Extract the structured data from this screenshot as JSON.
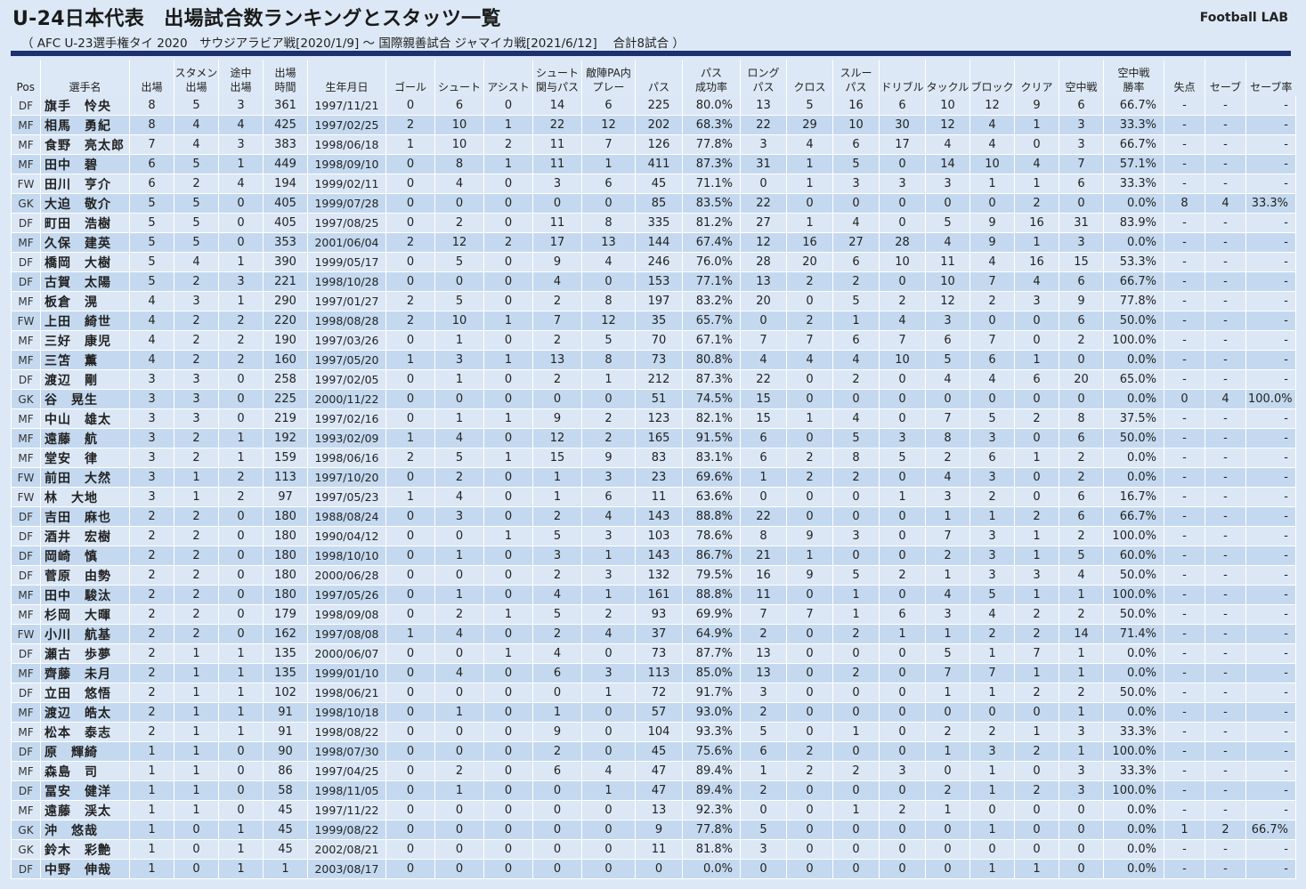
{
  "header": {
    "title": "U-24日本代表　出場試合数ランキングとスタッツ一覧",
    "subtitle": "（ AFC U-23選手権タイ 2020　サウジアラビア戦[2020/1/9] ～ 国際親善試合 ジャマイカ戦[2021/6/12]　 合計8試合 ）",
    "brand": "Football LAB"
  },
  "colors": {
    "accent": "#1e2f72",
    "row_light": "#dbe7f5",
    "row_dark": "#c4d9ef",
    "bar_fill": "#2c64a8"
  },
  "columns": [
    [
      "Pos"
    ],
    [
      "選手名"
    ],
    [
      "出場"
    ],
    [
      "スタメン",
      "出場"
    ],
    [
      "途中",
      "出場"
    ],
    [
      "出場",
      "時間"
    ],
    [
      "生年月日"
    ],
    [
      "ゴール"
    ],
    [
      "シュート"
    ],
    [
      "アシスト"
    ],
    [
      "シュート",
      "関与パス"
    ],
    [
      "敵陣PA内",
      "プレー"
    ],
    [
      "パス"
    ],
    [
      "パス",
      "成功率"
    ],
    [
      "ロング",
      "パス"
    ],
    [
      "クロス"
    ],
    [
      "スルー",
      "パス"
    ],
    [
      "ドリブル"
    ],
    [
      "タックル"
    ],
    [
      "ブロック"
    ],
    [
      "クリア"
    ],
    [
      "空中戦"
    ],
    [
      "空中戦",
      "勝率"
    ],
    [
      "失点"
    ],
    [
      "セーブ"
    ],
    [
      "セーブ率"
    ]
  ],
  "maxima": [
    8,
    5,
    4,
    449,
    null,
    2,
    12,
    2,
    22,
    13,
    411,
    null,
    31,
    29,
    27,
    30,
    14,
    12,
    16,
    31,
    null,
    8,
    4,
    null
  ],
  "players": [
    [
      "DF",
      "旗手　怜央",
      "8",
      "5",
      "3",
      "361",
      "1997/11/21",
      "0",
      "6",
      "0",
      "14",
      "6",
      "225",
      "80.0%",
      "13",
      "5",
      "16",
      "6",
      "10",
      "12",
      "9",
      "6",
      "66.7%",
      "-",
      "-",
      "-"
    ],
    [
      "MF",
      "相馬　勇紀",
      "8",
      "4",
      "4",
      "425",
      "1997/02/25",
      "2",
      "10",
      "1",
      "22",
      "12",
      "202",
      "68.3%",
      "22",
      "29",
      "10",
      "30",
      "12",
      "4",
      "1",
      "3",
      "33.3%",
      "-",
      "-",
      "-"
    ],
    [
      "MF",
      "食野　亮太郎",
      "7",
      "4",
      "3",
      "383",
      "1998/06/18",
      "1",
      "10",
      "2",
      "11",
      "7",
      "126",
      "77.8%",
      "3",
      "4",
      "6",
      "17",
      "4",
      "4",
      "0",
      "3",
      "66.7%",
      "-",
      "-",
      "-"
    ],
    [
      "MF",
      "田中　碧",
      "6",
      "5",
      "1",
      "449",
      "1998/09/10",
      "0",
      "8",
      "1",
      "11",
      "1",
      "411",
      "87.3%",
      "31",
      "1",
      "5",
      "0",
      "14",
      "10",
      "4",
      "7",
      "57.1%",
      "-",
      "-",
      "-"
    ],
    [
      "FW",
      "田川　亨介",
      "6",
      "2",
      "4",
      "194",
      "1999/02/11",
      "0",
      "4",
      "0",
      "3",
      "6",
      "45",
      "71.1%",
      "0",
      "1",
      "3",
      "3",
      "3",
      "1",
      "1",
      "6",
      "33.3%",
      "-",
      "-",
      "-"
    ],
    [
      "GK",
      "大迫　敬介",
      "5",
      "5",
      "0",
      "405",
      "1999/07/28",
      "0",
      "0",
      "0",
      "0",
      "0",
      "85",
      "83.5%",
      "22",
      "0",
      "0",
      "0",
      "0",
      "0",
      "2",
      "0",
      "0.0%",
      "8",
      "4",
      "33.3%"
    ],
    [
      "DF",
      "町田　浩樹",
      "5",
      "5",
      "0",
      "405",
      "1997/08/25",
      "0",
      "2",
      "0",
      "11",
      "8",
      "335",
      "81.2%",
      "27",
      "1",
      "4",
      "0",
      "5",
      "9",
      "16",
      "31",
      "83.9%",
      "-",
      "-",
      "-"
    ],
    [
      "MF",
      "久保　建英",
      "5",
      "5",
      "0",
      "353",
      "2001/06/04",
      "2",
      "12",
      "2",
      "17",
      "13",
      "144",
      "67.4%",
      "12",
      "16",
      "27",
      "28",
      "4",
      "9",
      "1",
      "3",
      "0.0%",
      "-",
      "-",
      "-"
    ],
    [
      "DF",
      "橋岡　大樹",
      "5",
      "4",
      "1",
      "390",
      "1999/05/17",
      "0",
      "5",
      "0",
      "9",
      "4",
      "246",
      "76.0%",
      "28",
      "20",
      "6",
      "10",
      "11",
      "4",
      "16",
      "15",
      "53.3%",
      "-",
      "-",
      "-"
    ],
    [
      "DF",
      "古賀　太陽",
      "5",
      "2",
      "3",
      "221",
      "1998/10/28",
      "0",
      "0",
      "0",
      "4",
      "0",
      "153",
      "77.1%",
      "13",
      "2",
      "2",
      "0",
      "10",
      "7",
      "4",
      "6",
      "66.7%",
      "-",
      "-",
      "-"
    ],
    [
      "MF",
      "板倉　滉",
      "4",
      "3",
      "1",
      "290",
      "1997/01/27",
      "2",
      "5",
      "0",
      "2",
      "8",
      "197",
      "83.2%",
      "20",
      "0",
      "5",
      "2",
      "12",
      "2",
      "3",
      "9",
      "77.8%",
      "-",
      "-",
      "-"
    ],
    [
      "FW",
      "上田　綺世",
      "4",
      "2",
      "2",
      "220",
      "1998/08/28",
      "2",
      "10",
      "1",
      "7",
      "12",
      "35",
      "65.7%",
      "0",
      "2",
      "1",
      "4",
      "3",
      "0",
      "0",
      "6",
      "50.0%",
      "-",
      "-",
      "-"
    ],
    [
      "MF",
      "三好　康児",
      "4",
      "2",
      "2",
      "190",
      "1997/03/26",
      "0",
      "1",
      "0",
      "2",
      "5",
      "70",
      "67.1%",
      "7",
      "7",
      "6",
      "7",
      "6",
      "7",
      "0",
      "2",
      "100.0%",
      "-",
      "-",
      "-"
    ],
    [
      "MF",
      "三笘　薫",
      "4",
      "2",
      "2",
      "160",
      "1997/05/20",
      "1",
      "3",
      "1",
      "13",
      "8",
      "73",
      "80.8%",
      "4",
      "4",
      "4",
      "10",
      "5",
      "6",
      "1",
      "0",
      "0.0%",
      "-",
      "-",
      "-"
    ],
    [
      "DF",
      "渡辺　剛",
      "3",
      "3",
      "0",
      "258",
      "1997/02/05",
      "0",
      "1",
      "0",
      "2",
      "1",
      "212",
      "87.3%",
      "22",
      "0",
      "2",
      "0",
      "4",
      "4",
      "6",
      "20",
      "65.0%",
      "-",
      "-",
      "-"
    ],
    [
      "GK",
      "谷　晃生",
      "3",
      "3",
      "0",
      "225",
      "2000/11/22",
      "0",
      "0",
      "0",
      "0",
      "0",
      "51",
      "74.5%",
      "15",
      "0",
      "0",
      "0",
      "0",
      "0",
      "0",
      "0",
      "0.0%",
      "0",
      "4",
      "100.0%"
    ],
    [
      "MF",
      "中山　雄太",
      "3",
      "3",
      "0",
      "219",
      "1997/02/16",
      "0",
      "1",
      "1",
      "9",
      "2",
      "123",
      "82.1%",
      "15",
      "1",
      "4",
      "0",
      "7",
      "5",
      "2",
      "8",
      "37.5%",
      "-",
      "-",
      "-"
    ],
    [
      "MF",
      "遠藤　航",
      "3",
      "2",
      "1",
      "192",
      "1993/02/09",
      "1",
      "4",
      "0",
      "12",
      "2",
      "165",
      "91.5%",
      "6",
      "0",
      "5",
      "3",
      "8",
      "3",
      "0",
      "6",
      "50.0%",
      "-",
      "-",
      "-"
    ],
    [
      "MF",
      "堂安　律",
      "3",
      "2",
      "1",
      "159",
      "1998/06/16",
      "2",
      "5",
      "1",
      "15",
      "9",
      "83",
      "83.1%",
      "6",
      "2",
      "8",
      "5",
      "2",
      "6",
      "1",
      "2",
      "0.0%",
      "-",
      "-",
      "-"
    ],
    [
      "FW",
      "前田　大然",
      "3",
      "1",
      "2",
      "113",
      "1997/10/20",
      "0",
      "2",
      "0",
      "1",
      "3",
      "23",
      "69.6%",
      "1",
      "2",
      "2",
      "0",
      "4",
      "3",
      "0",
      "2",
      "0.0%",
      "-",
      "-",
      "-"
    ],
    [
      "FW",
      "林　大地",
      "3",
      "1",
      "2",
      "97",
      "1997/05/23",
      "1",
      "4",
      "0",
      "1",
      "6",
      "11",
      "63.6%",
      "0",
      "0",
      "0",
      "1",
      "3",
      "2",
      "0",
      "6",
      "16.7%",
      "-",
      "-",
      "-"
    ],
    [
      "DF",
      "吉田　麻也",
      "2",
      "2",
      "0",
      "180",
      "1988/08/24",
      "0",
      "3",
      "0",
      "2",
      "4",
      "143",
      "88.8%",
      "22",
      "0",
      "0",
      "0",
      "1",
      "1",
      "2",
      "6",
      "66.7%",
      "-",
      "-",
      "-"
    ],
    [
      "DF",
      "酒井　宏樹",
      "2",
      "2",
      "0",
      "180",
      "1990/04/12",
      "0",
      "0",
      "1",
      "5",
      "3",
      "103",
      "78.6%",
      "8",
      "9",
      "3",
      "0",
      "7",
      "3",
      "1",
      "2",
      "100.0%",
      "-",
      "-",
      "-"
    ],
    [
      "DF",
      "岡崎　慎",
      "2",
      "2",
      "0",
      "180",
      "1998/10/10",
      "0",
      "1",
      "0",
      "3",
      "1",
      "143",
      "86.7%",
      "21",
      "1",
      "0",
      "0",
      "2",
      "3",
      "1",
      "5",
      "60.0%",
      "-",
      "-",
      "-"
    ],
    [
      "DF",
      "菅原　由勢",
      "2",
      "2",
      "0",
      "180",
      "2000/06/28",
      "0",
      "0",
      "0",
      "2",
      "3",
      "132",
      "79.5%",
      "16",
      "9",
      "5",
      "2",
      "1",
      "3",
      "3",
      "4",
      "50.0%",
      "-",
      "-",
      "-"
    ],
    [
      "MF",
      "田中　駿汰",
      "2",
      "2",
      "0",
      "180",
      "1997/05/26",
      "0",
      "1",
      "0",
      "4",
      "1",
      "161",
      "88.8%",
      "11",
      "0",
      "1",
      "0",
      "4",
      "5",
      "1",
      "1",
      "100.0%",
      "-",
      "-",
      "-"
    ],
    [
      "MF",
      "杉岡　大暉",
      "2",
      "2",
      "0",
      "179",
      "1998/09/08",
      "0",
      "2",
      "1",
      "5",
      "2",
      "93",
      "69.9%",
      "7",
      "7",
      "1",
      "6",
      "3",
      "4",
      "2",
      "2",
      "50.0%",
      "-",
      "-",
      "-"
    ],
    [
      "FW",
      "小川　航基",
      "2",
      "2",
      "0",
      "162",
      "1997/08/08",
      "1",
      "4",
      "0",
      "2",
      "4",
      "37",
      "64.9%",
      "2",
      "0",
      "2",
      "1",
      "1",
      "2",
      "2",
      "14",
      "71.4%",
      "-",
      "-",
      "-"
    ],
    [
      "DF",
      "瀬古　歩夢",
      "2",
      "1",
      "1",
      "135",
      "2000/06/07",
      "0",
      "0",
      "1",
      "4",
      "0",
      "73",
      "87.7%",
      "13",
      "0",
      "0",
      "0",
      "5",
      "1",
      "7",
      "1",
      "0.0%",
      "-",
      "-",
      "-"
    ],
    [
      "MF",
      "齊藤　未月",
      "2",
      "1",
      "1",
      "135",
      "1999/01/10",
      "0",
      "4",
      "0",
      "6",
      "3",
      "113",
      "85.0%",
      "13",
      "0",
      "2",
      "0",
      "7",
      "7",
      "1",
      "1",
      "0.0%",
      "-",
      "-",
      "-"
    ],
    [
      "DF",
      "立田　悠悟",
      "2",
      "1",
      "1",
      "102",
      "1998/06/21",
      "0",
      "0",
      "0",
      "0",
      "1",
      "72",
      "91.7%",
      "3",
      "0",
      "0",
      "0",
      "1",
      "1",
      "2",
      "2",
      "50.0%",
      "-",
      "-",
      "-"
    ],
    [
      "MF",
      "渡辺　皓太",
      "2",
      "1",
      "1",
      "91",
      "1998/10/18",
      "0",
      "1",
      "0",
      "1",
      "0",
      "57",
      "93.0%",
      "2",
      "0",
      "0",
      "0",
      "0",
      "0",
      "0",
      "1",
      "0.0%",
      "-",
      "-",
      "-"
    ],
    [
      "MF",
      "松本　泰志",
      "2",
      "1",
      "1",
      "91",
      "1998/08/22",
      "0",
      "0",
      "0",
      "9",
      "0",
      "104",
      "93.3%",
      "5",
      "0",
      "1",
      "0",
      "2",
      "2",
      "1",
      "3",
      "33.3%",
      "-",
      "-",
      "-"
    ],
    [
      "DF",
      "原　輝綺",
      "1",
      "1",
      "0",
      "90",
      "1998/07/30",
      "0",
      "0",
      "0",
      "2",
      "0",
      "45",
      "75.6%",
      "6",
      "2",
      "0",
      "0",
      "1",
      "3",
      "2",
      "1",
      "100.0%",
      "-",
      "-",
      "-"
    ],
    [
      "MF",
      "森島　司",
      "1",
      "1",
      "0",
      "86",
      "1997/04/25",
      "0",
      "2",
      "0",
      "6",
      "4",
      "47",
      "89.4%",
      "1",
      "2",
      "2",
      "3",
      "0",
      "1",
      "0",
      "3",
      "33.3%",
      "-",
      "-",
      "-"
    ],
    [
      "DF",
      "冨安　健洋",
      "1",
      "1",
      "0",
      "58",
      "1998/11/05",
      "0",
      "1",
      "0",
      "0",
      "1",
      "47",
      "89.4%",
      "2",
      "0",
      "0",
      "0",
      "2",
      "1",
      "2",
      "3",
      "100.0%",
      "-",
      "-",
      "-"
    ],
    [
      "MF",
      "遠藤　渓太",
      "1",
      "1",
      "0",
      "45",
      "1997/11/22",
      "0",
      "0",
      "0",
      "0",
      "0",
      "13",
      "92.3%",
      "0",
      "0",
      "1",
      "2",
      "1",
      "0",
      "0",
      "0",
      "0.0%",
      "-",
      "-",
      "-"
    ],
    [
      "GK",
      "沖　悠哉",
      "1",
      "0",
      "1",
      "45",
      "1999/08/22",
      "0",
      "0",
      "0",
      "0",
      "0",
      "9",
      "77.8%",
      "5",
      "0",
      "0",
      "0",
      "0",
      "1",
      "0",
      "0",
      "0.0%",
      "1",
      "2",
      "66.7%"
    ],
    [
      "GK",
      "鈴木　彩艶",
      "1",
      "0",
      "1",
      "45",
      "2002/08/21",
      "0",
      "0",
      "0",
      "0",
      "0",
      "11",
      "81.8%",
      "3",
      "0",
      "0",
      "0",
      "0",
      "0",
      "0",
      "0",
      "0.0%",
      "-",
      "-",
      "-"
    ],
    [
      "DF",
      "中野　伸哉",
      "1",
      "0",
      "1",
      "1",
      "2003/08/17",
      "0",
      "0",
      "0",
      "0",
      "0",
      "0",
      "0.0%",
      "0",
      "0",
      "0",
      "0",
      "0",
      "1",
      "1",
      "0",
      "0.0%",
      "-",
      "-",
      "-"
    ]
  ]
}
